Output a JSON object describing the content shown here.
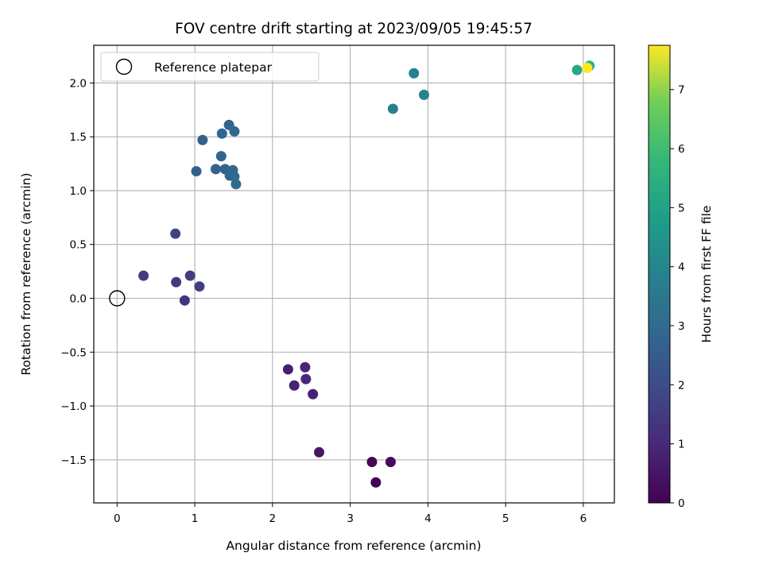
{
  "chart_data": {
    "type": "scatter",
    "title": "FOV centre drift starting at 2023/09/05 19:45:57",
    "xlabel": "Angular distance from reference (arcmin)",
    "ylabel": "Rotation from reference (arcmin)",
    "xlim": [
      -0.3,
      6.4
    ],
    "ylim": [
      -1.9,
      2.35
    ],
    "xticks": [
      0,
      1,
      2,
      3,
      4,
      5,
      6
    ],
    "xtick_labels": [
      "0",
      "1",
      "2",
      "3",
      "4",
      "5",
      "6"
    ],
    "yticks": [
      -1.5,
      -1.0,
      -0.5,
      0.0,
      0.5,
      1.0,
      1.5,
      2.0
    ],
    "ytick_labels": [
      "−1.5",
      "−1.0",
      "−0.5",
      "0.0",
      "0.5",
      "1.0",
      "1.5",
      "2.0"
    ],
    "grid": true,
    "legend": {
      "position": "top-left",
      "entries": [
        {
          "label": "Reference platepar",
          "marker": "open-circle"
        }
      ]
    },
    "reference_point": {
      "x": 0,
      "y": 0
    },
    "colorbar": {
      "label": "Hours from first FF file",
      "colormap": "viridis",
      "range": [
        0,
        7.75
      ],
      "ticks": [
        0,
        1,
        2,
        3,
        4,
        5,
        6,
        7
      ],
      "tick_labels": [
        "0",
        "1",
        "2",
        "3",
        "4",
        "5",
        "6",
        "7"
      ]
    },
    "points": [
      {
        "x": 3.33,
        "y": -1.71,
        "c": 0.0
      },
      {
        "x": 3.28,
        "y": -1.52,
        "c": 0.15
      },
      {
        "x": 3.52,
        "y": -1.52,
        "c": 0.25
      },
      {
        "x": 2.6,
        "y": -1.43,
        "c": 0.55
      },
      {
        "x": 2.2,
        "y": -0.66,
        "c": 0.75
      },
      {
        "x": 2.28,
        "y": -0.81,
        "c": 0.85
      },
      {
        "x": 2.42,
        "y": -0.64,
        "c": 0.95
      },
      {
        "x": 2.43,
        "y": -0.75,
        "c": 1.0
      },
      {
        "x": 2.52,
        "y": -0.89,
        "c": 0.8
      },
      {
        "x": 0.87,
        "y": -0.02,
        "c": 1.35
      },
      {
        "x": 0.34,
        "y": 0.21,
        "c": 1.5
      },
      {
        "x": 0.76,
        "y": 0.15,
        "c": 1.45
      },
      {
        "x": 0.94,
        "y": 0.21,
        "c": 1.55
      },
      {
        "x": 1.06,
        "y": 0.11,
        "c": 1.6
      },
      {
        "x": 0.75,
        "y": 0.6,
        "c": 1.7
      },
      {
        "x": 1.02,
        "y": 1.18,
        "c": 2.6
      },
      {
        "x": 1.1,
        "y": 1.47,
        "c": 2.7
      },
      {
        "x": 1.27,
        "y": 1.2,
        "c": 2.75
      },
      {
        "x": 1.34,
        "y": 1.32,
        "c": 2.8
      },
      {
        "x": 1.35,
        "y": 1.53,
        "c": 2.85
      },
      {
        "x": 1.39,
        "y": 1.2,
        "c": 2.75
      },
      {
        "x": 1.44,
        "y": 1.61,
        "c": 2.8
      },
      {
        "x": 1.45,
        "y": 1.14,
        "c": 2.85
      },
      {
        "x": 1.49,
        "y": 1.19,
        "c": 2.9
      },
      {
        "x": 1.51,
        "y": 1.55,
        "c": 2.9
      },
      {
        "x": 1.51,
        "y": 1.13,
        "c": 2.95
      },
      {
        "x": 1.53,
        "y": 1.06,
        "c": 3.0
      },
      {
        "x": 3.55,
        "y": 1.76,
        "c": 3.75
      },
      {
        "x": 3.82,
        "y": 2.09,
        "c": 3.85
      },
      {
        "x": 3.95,
        "y": 1.89,
        "c": 3.9
      },
      {
        "x": 5.92,
        "y": 2.12,
        "c": 5.2
      },
      {
        "x": 6.08,
        "y": 2.16,
        "c": 5.6
      },
      {
        "x": 6.05,
        "y": 2.14,
        "c": 7.75
      }
    ]
  }
}
